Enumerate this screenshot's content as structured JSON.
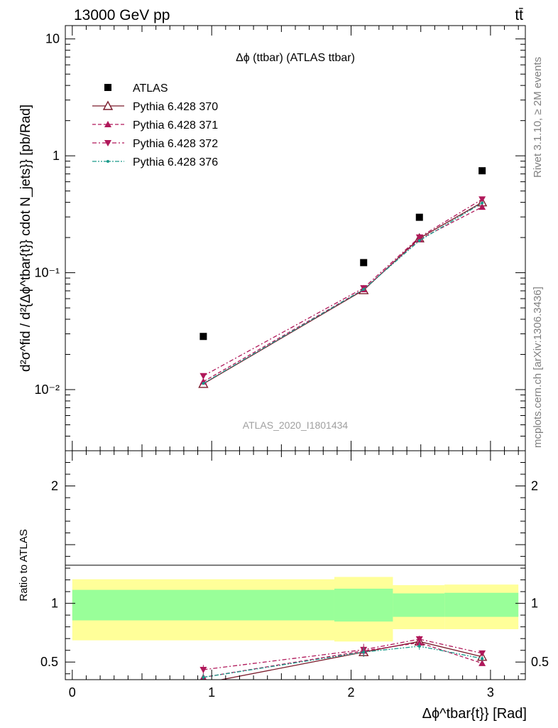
{
  "header": {
    "left": "13000 GeV pp",
    "right": "tt̄"
  },
  "side_labels": {
    "rivet": "Rivet 3.1.10, ≥ 2M events",
    "mcplots": "mcplots.cern.ch [arXiv:1306.3436]"
  },
  "watermark": "ATLAS_2020_I1801434",
  "chart_data": [
    {
      "type": "scatter",
      "panel": "main",
      "title": "Δϕ (ttbar) (ATLAS ttbar)",
      "ylabel": "d²σ^fid / d²{Δϕ^tbar{t}} cdot N_jets}} [pb/Rad]",
      "yscale": "log",
      "ylim": [
        0.003,
        13
      ],
      "xlim": [
        -0.05,
        3.25
      ],
      "yticks": [
        0.01,
        0.1,
        1,
        10
      ],
      "ytick_labels": [
        "10⁻²",
        "10⁻¹",
        "1",
        "10"
      ],
      "legend_position": "top-left",
      "x": [
        0.94,
        2.09,
        2.49,
        2.94
      ],
      "series": [
        {
          "name": "ATLAS",
          "color": "#000000",
          "marker": "square",
          "line": "none",
          "values": [
            0.0285,
            0.122,
            0.298,
            0.745
          ]
        },
        {
          "name": "Pythia 6.428 370",
          "color": "#7a1b2b",
          "marker": "triangle-open",
          "line": "solid",
          "values": [
            0.0112,
            0.071,
            0.197,
            0.4
          ]
        },
        {
          "name": "Pythia 6.428 371",
          "color": "#b0185a",
          "marker": "triangle-up",
          "line": "dashed",
          "values": [
            0.0117,
            0.072,
            0.193,
            0.365
          ]
        },
        {
          "name": "Pythia 6.428 372",
          "color": "#b0185a",
          "marker": "triangle-down",
          "line": "dashdot",
          "values": [
            0.0131,
            0.074,
            0.201,
            0.425
          ]
        },
        {
          "name": "Pythia 6.428 376",
          "color": "#1a9a8a",
          "marker": "dot",
          "line": "dashdotdot",
          "values": [
            0.0113,
            0.072,
            0.188,
            0.395
          ]
        }
      ]
    },
    {
      "type": "line",
      "panel": "ratio",
      "ylabel": "Ratio to ATLAS",
      "ylim": [
        0.35,
        2.3
      ],
      "xlim": [
        -0.05,
        3.25
      ],
      "xlabel": "Δϕ^tbar{t}} [Rad]",
      "yticks": [
        0.5,
        1,
        2
      ],
      "ytick_labels": [
        "0.5",
        "1",
        "2"
      ],
      "xticks": [
        0,
        1,
        2,
        3
      ],
      "xtick_labels": [
        "0",
        "1",
        "2",
        "3"
      ],
      "bands": [
        {
          "x_from": 0.0,
          "x_to": 1.88,
          "outer": [
            0.685,
            1.205
          ],
          "inner": [
            0.855,
            1.115
          ]
        },
        {
          "x_from": 1.88,
          "x_to": 2.3,
          "outer": [
            0.675,
            1.225
          ],
          "inner": [
            0.845,
            1.125
          ]
        },
        {
          "x_from": 2.3,
          "x_to": 2.67,
          "outer": [
            0.78,
            1.155
          ],
          "inner": [
            0.885,
            1.085
          ]
        },
        {
          "x_from": 2.67,
          "x_to": 3.2,
          "outer": [
            0.78,
            1.16
          ],
          "inner": [
            0.885,
            1.09
          ]
        }
      ],
      "band_colors": {
        "outer": "#ffff99",
        "inner": "#99ff99"
      },
      "x": [
        0.94,
        2.09,
        2.49,
        2.94
      ],
      "series": [
        {
          "name": "Pythia 6.428 370",
          "color": "#7a1b2b",
          "marker": "triangle-open",
          "line": "solid",
          "values": [
            0.32,
            0.585,
            0.675,
            0.545
          ],
          "err": [
            0.03,
            0.04,
            0.03,
            0.02
          ]
        },
        {
          "name": "Pythia 6.428 371",
          "color": "#b0185a",
          "marker": "triangle-up",
          "line": "dashed",
          "values": [
            0.37,
            0.595,
            0.665,
            0.49
          ],
          "err": [
            0.03,
            0.04,
            0.03,
            0.02
          ]
        },
        {
          "name": "Pythia 6.428 372",
          "color": "#b0185a",
          "marker": "triangle-down",
          "line": "dashdot",
          "values": [
            0.435,
            0.605,
            0.695,
            0.575
          ],
          "err": [
            0.04,
            0.05,
            0.03,
            0.02
          ]
        },
        {
          "name": "Pythia 6.428 376",
          "color": "#1a9a8a",
          "marker": "dot",
          "line": "dashdotdot",
          "values": [
            0.37,
            0.585,
            0.635,
            0.53
          ],
          "err": [
            0.03,
            0.04,
            0.03,
            0.02
          ]
        }
      ]
    }
  ]
}
